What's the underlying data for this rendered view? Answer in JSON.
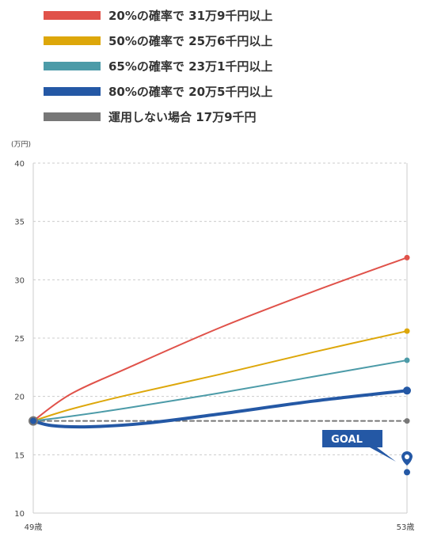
{
  "legend": [
    {
      "label": "20%の確率で 31万9千円以上",
      "color": "#E0524A"
    },
    {
      "label": "50%の確率で 25万6千円以上",
      "color": "#DDA70A"
    },
    {
      "label": "65%の確率で 23万1千円以上",
      "color": "#4C9BA8"
    },
    {
      "label": "80%の確率で 20万5千円以上",
      "color": "#2458A5"
    },
    {
      "label": "運用しない場合 17万9千円",
      "color": "#777777"
    }
  ],
  "chart_data": {
    "type": "line",
    "ylabel": "(万円)",
    "x_labels": [
      "49歳",
      "53歳"
    ],
    "ylim": [
      10,
      40
    ],
    "y_ticks": [
      10,
      15,
      20,
      25,
      30,
      35,
      40
    ],
    "grid": true,
    "series": [
      {
        "name": "20%の確率で 31万9千円以上",
        "color": "#E0524A",
        "width": 2,
        "x": [
          0,
          0.1,
          0.25,
          0.5,
          0.75,
          1.0
        ],
        "y": [
          17.9,
          20.2,
          22.4,
          25.9,
          29.0,
          31.9
        ]
      },
      {
        "name": "50%の確率で 25万6千円以上",
        "color": "#DDA70A",
        "width": 2,
        "x": [
          0,
          0.1,
          0.25,
          0.5,
          0.75,
          1.0
        ],
        "y": [
          17.9,
          18.9,
          20.1,
          21.9,
          23.8,
          25.6
        ]
      },
      {
        "name": "65%の確率で 23万1千円以上",
        "color": "#4C9BA8",
        "width": 2,
        "x": [
          0,
          0.1,
          0.25,
          0.5,
          0.75,
          1.0
        ],
        "y": [
          17.9,
          18.3,
          19.0,
          20.3,
          21.7,
          23.1
        ]
      },
      {
        "name": "80%の確率で 20万5千円以上",
        "color": "#2458A5",
        "width": 4,
        "x": [
          0,
          0.05,
          0.15,
          0.3,
          0.5,
          0.75,
          1.0
        ],
        "y": [
          17.9,
          17.5,
          17.4,
          17.7,
          18.5,
          19.6,
          20.5
        ]
      },
      {
        "name": "運用しない場合 17万9千円",
        "color": "#777777",
        "width": 2,
        "dashed": true,
        "x": [
          0,
          1.0
        ],
        "y": [
          17.9,
          17.9
        ]
      }
    ],
    "goal": {
      "label": "GOAL",
      "value": 13.5
    }
  }
}
